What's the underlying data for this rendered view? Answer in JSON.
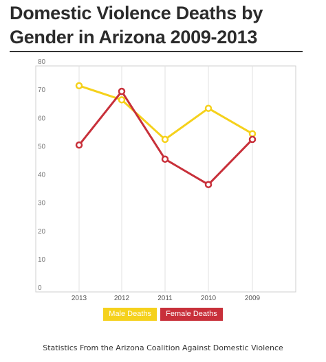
{
  "title": "Domestic Violence Deaths by Gender in Arizona 2009-2013",
  "source": "Statistics From the Arizona Coalition Against Domestic Violence",
  "chart_data": {
    "type": "line",
    "title": "Domestic Violence Deaths by Gender in Arizona 2009-2013",
    "xlabel": "",
    "ylabel": "",
    "categories": [
      "2013",
      "2012",
      "2011",
      "2010",
      "2009"
    ],
    "ylim": [
      0,
      80
    ],
    "yticks": [
      "0",
      "10",
      "20",
      "30",
      "40",
      "50",
      "60",
      "70",
      "80"
    ],
    "grid": "vertical",
    "legend": "bottom",
    "series": [
      {
        "name": "Male Deaths",
        "color": "#f5d11c",
        "values": [
          73,
          68,
          54,
          65,
          56
        ]
      },
      {
        "name": "Female Deaths",
        "color": "#c8303a",
        "values": [
          52,
          71,
          47,
          38,
          54
        ]
      }
    ]
  }
}
